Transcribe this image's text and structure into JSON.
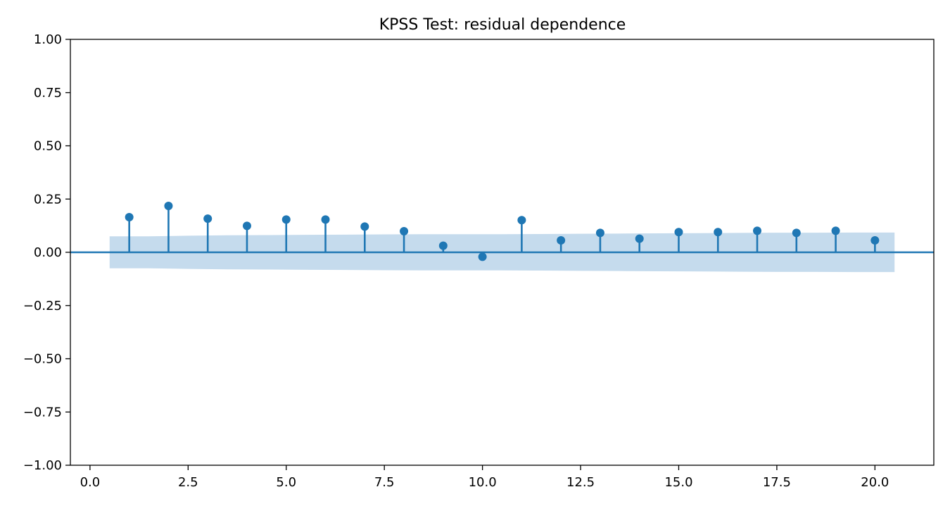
{
  "chart_data": {
    "type": "stem",
    "title": "KPSS Test: residual dependence",
    "xlabel": "",
    "ylabel": "",
    "xlim": [
      -0.5,
      21.5
    ],
    "ylim": [
      -1.0,
      1.0
    ],
    "x_ticks": [
      0.0,
      2.5,
      5.0,
      7.5,
      10.0,
      12.5,
      15.0,
      17.5,
      20.0
    ],
    "x_tick_labels": [
      "0.0",
      "2.5",
      "5.0",
      "7.5",
      "10.0",
      "12.5",
      "15.0",
      "17.5",
      "20.0"
    ],
    "y_ticks": [
      -1.0,
      -0.75,
      -0.5,
      -0.25,
      0.0,
      0.25,
      0.5,
      0.75,
      1.0
    ],
    "y_tick_labels": [
      "−1.00",
      "−0.75",
      "−0.50",
      "−0.25",
      "0.00",
      "0.25",
      "0.50",
      "0.75",
      "1.00"
    ],
    "grid": false,
    "lags": [
      1,
      2,
      3,
      4,
      5,
      6,
      7,
      8,
      9,
      10,
      11,
      12,
      13,
      14,
      15,
      16,
      17,
      18,
      19,
      20
    ],
    "values": [
      0.165,
      0.218,
      0.158,
      0.124,
      0.154,
      0.154,
      0.121,
      0.099,
      0.031,
      -0.021,
      0.151,
      0.056,
      0.091,
      0.064,
      0.095,
      0.095,
      0.101,
      0.091,
      0.101,
      0.056
    ],
    "confidence_band": {
      "x": [
        0.5,
        1.5,
        2.5,
        3.5,
        4.5,
        5.5,
        6.5,
        7.5,
        8.5,
        9.5,
        10.5,
        11.5,
        12.5,
        13.5,
        14.5,
        15.5,
        16.5,
        17.5,
        18.5,
        19.5,
        20.5
      ],
      "upper": [
        0.075,
        0.075,
        0.078,
        0.08,
        0.081,
        0.082,
        0.083,
        0.084,
        0.085,
        0.085,
        0.085,
        0.086,
        0.087,
        0.088,
        0.089,
        0.09,
        0.091,
        0.092,
        0.092,
        0.093,
        0.093
      ],
      "lower": [
        -0.075,
        -0.075,
        -0.078,
        -0.08,
        -0.081,
        -0.082,
        -0.083,
        -0.084,
        -0.085,
        -0.085,
        -0.085,
        -0.086,
        -0.087,
        -0.088,
        -0.089,
        -0.09,
        -0.091,
        -0.092,
        -0.092,
        -0.093,
        -0.093
      ]
    },
    "colors": {
      "stem": "#1f77b4",
      "band": "#c5dbed",
      "axis": "#000000"
    }
  }
}
